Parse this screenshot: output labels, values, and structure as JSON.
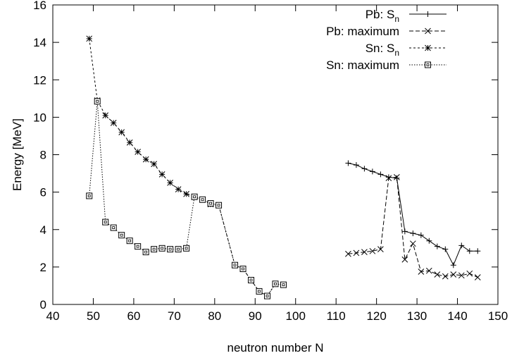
{
  "chart_data": {
    "type": "line",
    "xlabel": "neutron number N",
    "ylabel": "Energy [MeV]",
    "xlim": [
      40,
      150
    ],
    "ylim": [
      0,
      16
    ],
    "xticks": [
      40,
      50,
      60,
      70,
      80,
      90,
      100,
      110,
      120,
      130,
      140,
      150
    ],
    "yticks": [
      0,
      2,
      4,
      6,
      8,
      10,
      12,
      14,
      16
    ],
    "grid": false,
    "legend_position": "top-right",
    "series": [
      {
        "name": "Pb: S_n",
        "name_main": "Pb: S",
        "name_sub": "n",
        "line_style": "solid",
        "marker": "plus",
        "x": [
          113,
          115,
          117,
          119,
          121,
          123,
          125,
          127,
          129,
          131,
          133,
          135,
          137,
          139,
          141,
          143,
          145
        ],
        "y": [
          7.55,
          7.45,
          7.25,
          7.1,
          6.95,
          6.8,
          6.75,
          3.9,
          3.8,
          3.7,
          3.4,
          3.1,
          2.95,
          2.1,
          3.15,
          2.85,
          2.85
        ]
      },
      {
        "name": "Pb: maximum",
        "line_style": "dashed",
        "marker": "cross",
        "x": [
          113,
          115,
          117,
          119,
          121,
          123,
          125,
          127,
          129,
          131,
          133,
          135,
          137,
          139,
          141,
          143,
          145
        ],
        "y": [
          2.7,
          2.75,
          2.8,
          2.85,
          2.95,
          6.75,
          6.8,
          2.4,
          3.25,
          1.75,
          1.8,
          1.6,
          1.5,
          1.6,
          1.55,
          1.65,
          1.45
        ]
      },
      {
        "name": "Sn: S_n",
        "name_main": "Sn: S",
        "name_sub": "n",
        "line_style": "short-dashed",
        "marker": "asterisk",
        "x": [
          49,
          51,
          53,
          55,
          57,
          59,
          61,
          63,
          65,
          67,
          69,
          71,
          73,
          75,
          77,
          79,
          81,
          85,
          87,
          89,
          91,
          93,
          95,
          97
        ],
        "y": [
          14.2,
          10.9,
          10.1,
          9.7,
          9.2,
          8.65,
          8.15,
          7.75,
          7.5,
          6.95,
          6.5,
          6.15,
          5.9,
          5.75,
          5.6,
          5.35,
          5.3,
          2.1,
          1.9,
          1.3,
          0.7,
          0.45,
          1.1,
          1.05
        ]
      },
      {
        "name": "Sn: maximum",
        "line_style": "dotted",
        "marker": "square",
        "x": [
          49,
          51,
          53,
          55,
          57,
          59,
          61,
          63,
          65,
          67,
          69,
          71,
          73,
          75,
          77,
          79,
          81,
          85,
          87,
          89,
          91,
          93,
          95,
          97
        ],
        "y": [
          5.8,
          10.85,
          4.4,
          4.1,
          3.7,
          3.4,
          3.1,
          2.8,
          2.95,
          3.0,
          2.95,
          2.95,
          3.0,
          5.75,
          5.6,
          5.4,
          5.3,
          2.1,
          1.9,
          1.3,
          0.7,
          0.45,
          1.1,
          1.05
        ]
      }
    ]
  }
}
